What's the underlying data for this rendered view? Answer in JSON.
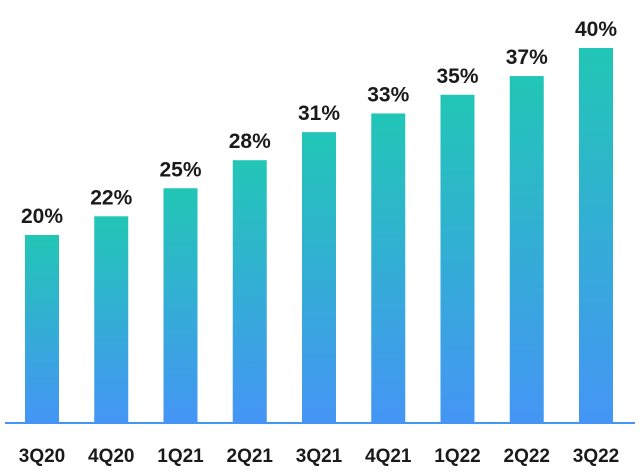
{
  "chart_data": {
    "type": "bar",
    "title": "",
    "xlabel": "",
    "ylabel": "",
    "categories": [
      "3Q20",
      "4Q20",
      "1Q21",
      "2Q21",
      "3Q21",
      "4Q21",
      "1Q22",
      "2Q22",
      "3Q22"
    ],
    "values": [
      20,
      22,
      25,
      28,
      31,
      33,
      35,
      37,
      40
    ],
    "data_labels": [
      "20%",
      "22%",
      "25%",
      "28%",
      "31%",
      "33%",
      "35%",
      "37%",
      "40%"
    ],
    "ylim": [
      0,
      40
    ],
    "grid": false,
    "legend": "none",
    "colors": {
      "bar_top": "#22c6b6",
      "bar_bottom": "#4595f5",
      "axis": "#4595f5",
      "text": "#1a1a1a"
    }
  }
}
